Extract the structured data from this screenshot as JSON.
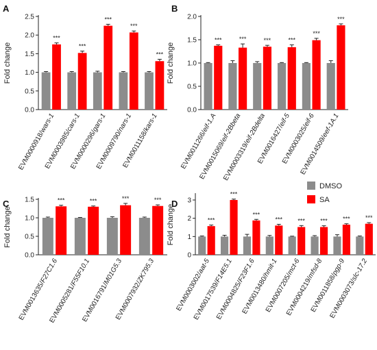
{
  "colors": {
    "DMSO": "#8c8c8c",
    "SA": "#ff0000"
  },
  "legend": [
    {
      "name": "DMSO",
      "color": "#8c8c8c"
    },
    {
      "name": "SA",
      "color": "#ff0000"
    }
  ],
  "chart_data": [
    {
      "panel": "A",
      "type": "bar",
      "ylabel": "Fold change",
      "ylim": [
        0,
        2.5
      ],
      "yticks": [
        0.0,
        0.5,
        1.0,
        1.5,
        2.0,
        2.5
      ],
      "ytick_labels": [
        "0.0",
        "0.5",
        "1.0",
        "1.5",
        "2.0",
        "2.5"
      ],
      "categories": [
        "EVM0000918/wars-1",
        "EVM0003985/cars-1",
        "EVM0000296/gars-1",
        "EVM0009790/nars-1",
        "EVM0011158/kars-1"
      ],
      "series": [
        {
          "name": "DMSO",
          "values": [
            1.0,
            1.0,
            1.0,
            1.0,
            1.0
          ],
          "errors": [
            0.02,
            0.02,
            0.03,
            0.02,
            0.02
          ]
        },
        {
          "name": "SA",
          "values": [
            1.75,
            1.52,
            2.25,
            2.07,
            1.3
          ],
          "errors": [
            0.04,
            0.05,
            0.04,
            0.04,
            0.05
          ]
        }
      ],
      "significance": [
        "***",
        "***",
        "***",
        "***",
        "***"
      ]
    },
    {
      "panel": "B",
      "type": "bar",
      "ylabel": "Fold change",
      "ylim": [
        0,
        2.0
      ],
      "yticks": [
        0.0,
        0.5,
        1.0,
        1.5,
        2.0
      ],
      "ytick_labels": [
        "0.0",
        "0.5",
        "1.0",
        "1.5",
        "2.0"
      ],
      "categories": [
        "EVM0011266/eif-1.A",
        "EVM0015069/eif-2Bbeta",
        "EVM0003319/eif-2Bdelta",
        "EVM0016427/eif-5",
        "EVM0003025/eif-6",
        "EVM0014509/eef-1A.1"
      ],
      "series": [
        {
          "name": "DMSO",
          "values": [
            1.0,
            1.0,
            1.0,
            1.0,
            1.0,
            1.0
          ],
          "errors": [
            0.01,
            0.05,
            0.03,
            0.01,
            0.01,
            0.05
          ]
        },
        {
          "name": "SA",
          "values": [
            1.37,
            1.33,
            1.35,
            1.34,
            1.49,
            1.81
          ],
          "errors": [
            0.02,
            0.08,
            0.03,
            0.05,
            0.04,
            0.03
          ]
        }
      ],
      "significance": [
        "***",
        "***",
        "***",
        "***",
        "***",
        "***"
      ]
    },
    {
      "panel": "C",
      "type": "bar",
      "ylabel": "Fold change",
      "ylim": [
        0,
        1.5
      ],
      "yticks": [
        0.0,
        0.5,
        1.0,
        1.5
      ],
      "ytick_labels": [
        "0.0",
        "0.5",
        "1.0",
        "1.5"
      ],
      "categories": [
        "EVM0013635/F27C1.6",
        "EVM0005281/F55F10.1",
        "EVM0016791/M01G5.3",
        "EVM0007932/ZK795.3"
      ],
      "series": [
        {
          "name": "DMSO",
          "values": [
            1.0,
            1.0,
            1.0,
            1.0
          ],
          "errors": [
            0.02,
            0.01,
            0.03,
            0.02
          ]
        },
        {
          "name": "SA",
          "values": [
            1.31,
            1.3,
            1.34,
            1.32
          ],
          "errors": [
            0.03,
            0.02,
            0.05,
            0.03
          ]
        }
      ],
      "significance": [
        "***",
        "***",
        "***",
        "***"
      ]
    },
    {
      "panel": "D",
      "type": "bar",
      "ylabel": "Fold change",
      "ylim": [
        0,
        3.3
      ],
      "yticks": [
        0,
        1,
        2,
        3
      ],
      "ytick_labels": [
        "0",
        "1",
        "2",
        "3"
      ],
      "categories": [
        "EVM0003002/aat-5",
        "EVM0017539/F14E5.1",
        "EVM0004825/F23F1.6",
        "EVM0013480/hmit-1",
        "EVM0007205/mct-6",
        "EVM0004219/mfsd-8",
        "EVM0011858/pgp-9",
        "EVM0003073/slc-17.2"
      ],
      "series": [
        {
          "name": "DMSO",
          "values": [
            1.0,
            1.0,
            1.0,
            1.0,
            1.0,
            1.0,
            1.0,
            1.0
          ],
          "errors": [
            0.03,
            0.07,
            0.12,
            0.06,
            0.02,
            0.05,
            0.1,
            0.03
          ]
        },
        {
          "name": "SA",
          "values": [
            1.57,
            3.0,
            1.88,
            1.6,
            1.52,
            1.52,
            1.65,
            1.7
          ],
          "errors": [
            0.06,
            0.05,
            0.06,
            0.07,
            0.08,
            0.07,
            0.05,
            0.06
          ]
        }
      ],
      "significance": [
        "***",
        "***",
        "***",
        "***",
        "***",
        "***",
        "***",
        "***"
      ]
    }
  ]
}
